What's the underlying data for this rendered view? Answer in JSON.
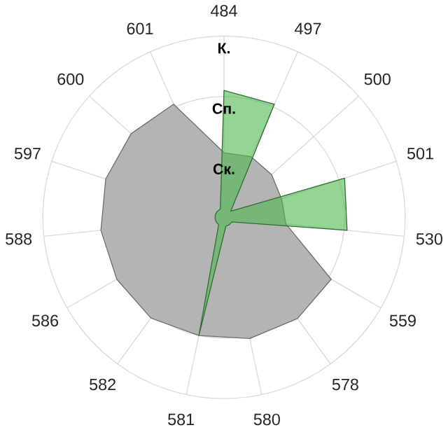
{
  "chart_data": {
    "type": "radar",
    "categories": [
      "484",
      "497",
      "500",
      "501",
      "530",
      "559",
      "578",
      "580",
      "581",
      "582",
      "586",
      "588",
      "597",
      "600",
      "601"
    ],
    "series": [
      {
        "color": "#b4b4b4",
        "values": [
          1.07,
          1.1,
          1.06,
          1.0,
          1.03,
          2.05,
          2.07,
          2.05,
          2.0,
          2.06,
          2.05,
          2.05,
          2.06,
          2.07,
          2.05
        ]
      },
      {
        "color": "#4cb84c",
        "values": [
          2.1,
          2.05,
          0.15,
          2.1,
          2.05,
          0.15,
          0.15,
          0.15,
          2.0,
          0.15,
          0.15,
          0.15,
          0.15,
          0.15,
          0.15
        ]
      }
    ],
    "ylim": [
      0,
      3
    ],
    "yticks": [
      {
        "value": 1,
        "label": "Ск."
      },
      {
        "value": 2,
        "label": "Сп."
      },
      {
        "value": 3,
        "label": "К."
      }
    ],
    "grid": true
  }
}
